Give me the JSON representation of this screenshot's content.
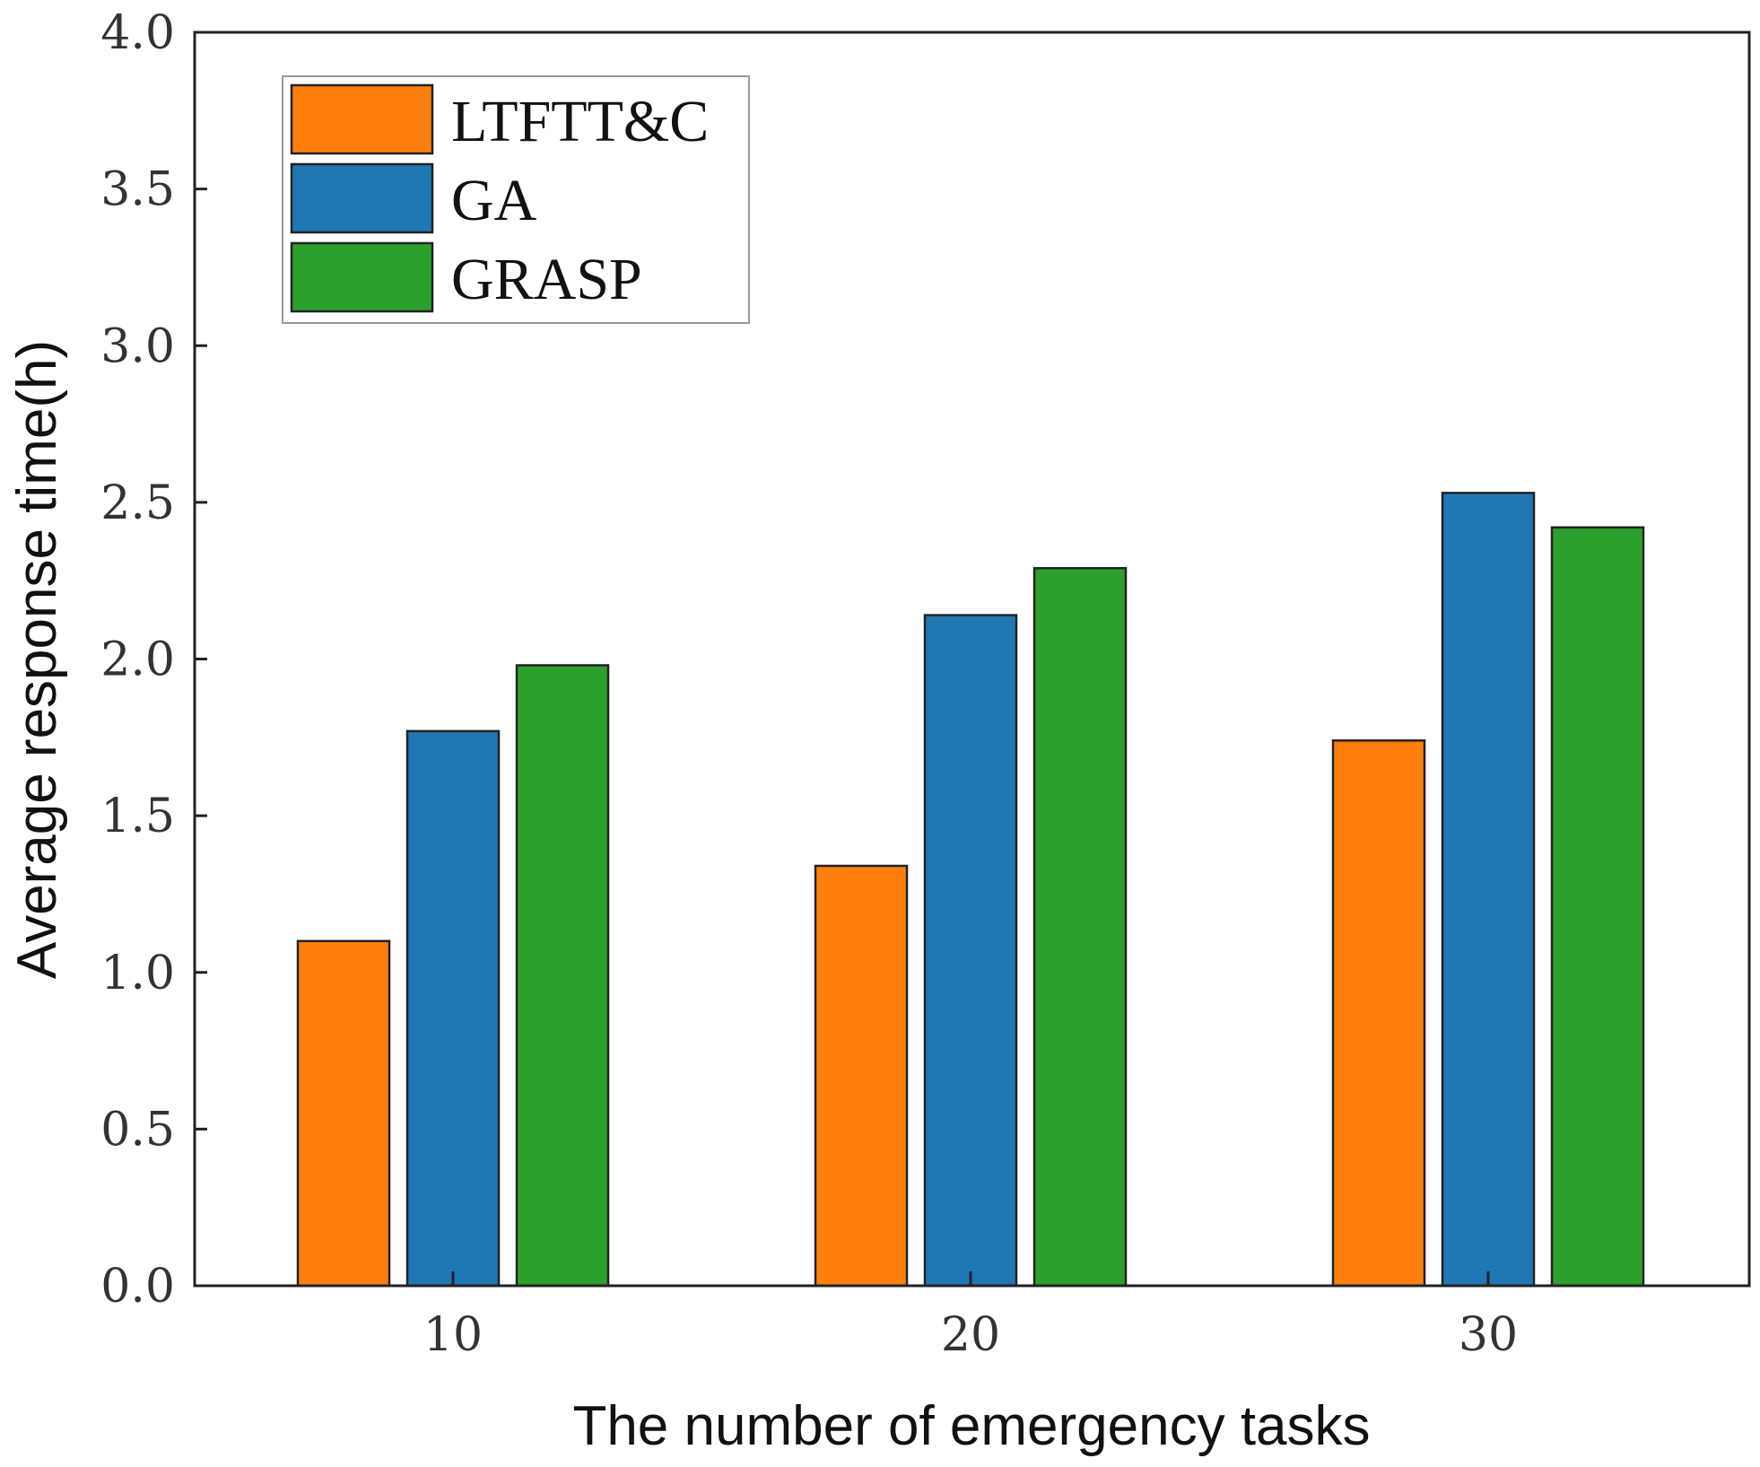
{
  "chart_data": {
    "type": "bar",
    "title": "",
    "xlabel": "The number of emergency tasks",
    "ylabel": "Average response time(h)",
    "categories": [
      "10",
      "20",
      "30"
    ],
    "ylim": [
      0,
      4.0
    ],
    "yticks": [
      "0.0",
      "0.5",
      "1.0",
      "1.5",
      "2.0",
      "2.5",
      "3.0",
      "3.5",
      "4.0"
    ],
    "legend_position": "top-left",
    "grid": false,
    "series": [
      {
        "name": "LTFTT&C",
        "color": "#ff7f0e",
        "values": [
          1.1,
          1.34,
          1.74
        ]
      },
      {
        "name": "GA",
        "color": "#1f77b4",
        "values": [
          1.77,
          2.14,
          2.53
        ]
      },
      {
        "name": "GRASP",
        "color": "#2ca02c",
        "values": [
          1.98,
          2.29,
          2.42
        ]
      }
    ]
  }
}
